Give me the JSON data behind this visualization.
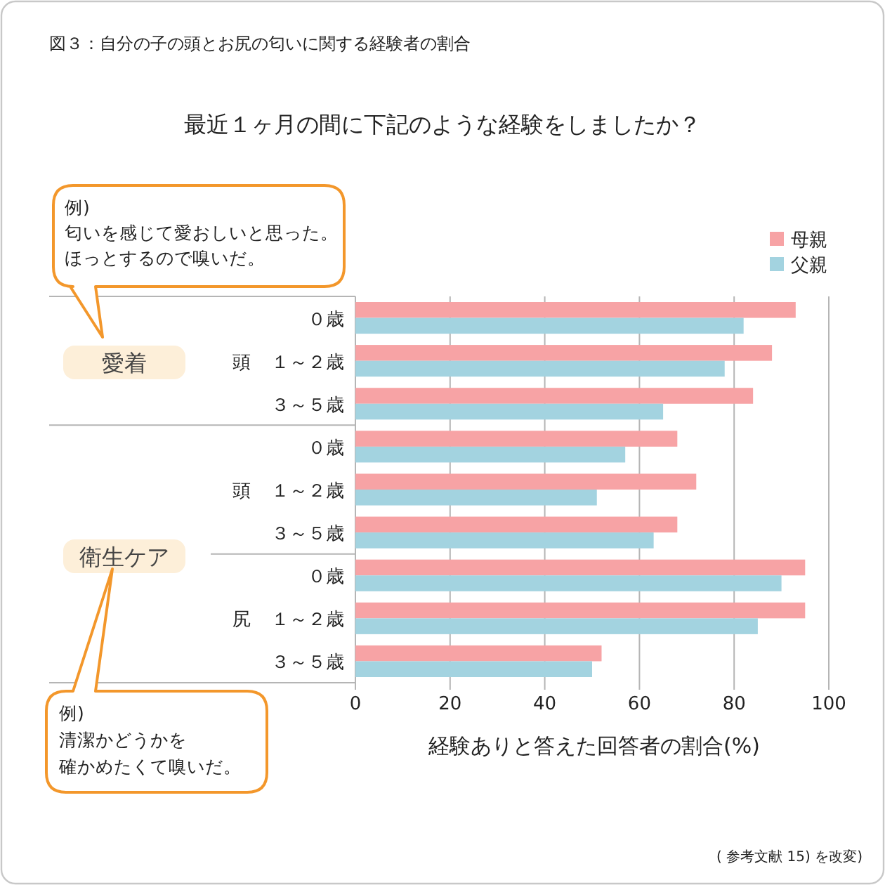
{
  "chart_data": {
    "type": "bar",
    "orientation": "horizontal",
    "title": "図３：自分の子の頭とお尻の匂いに関する経験者の割合",
    "subtitle": "最近１ヶ月の間に下記のような経験をしましたか？",
    "xlabel": "経験ありと答えた回答者の割合(%)",
    "categories": [
      "０歳",
      "１～２歳",
      "３～５歳",
      "０歳",
      "１～２歳",
      "３～５歳",
      "０歳",
      "１～２歳",
      "３～５歳"
    ],
    "series": [
      {
        "name": "母親",
        "color": "#f7a3a5",
        "values": [
          93,
          88,
          84,
          68,
          72,
          68,
          95,
          95,
          52
        ]
      },
      {
        "name": "父親",
        "color": "#a3d3e0",
        "values": [
          82,
          78,
          65,
          57,
          51,
          63,
          90,
          85,
          50
        ]
      }
    ],
    "xlim": [
      0,
      100
    ],
    "xticks": [
      0,
      20,
      40,
      60,
      80,
      100
    ],
    "grid": "x",
    "legend": "top right",
    "annotations": [
      "頭",
      "頭",
      "尻",
      "愛着",
      "衛生ケア",
      "例)",
      "匂いを感じて愛おしいと思った。",
      "ほっとするので嗅いだ。",
      "例)",
      "清潔かどうかを",
      "確かめたくて嗅いだ。",
      "( 参考文献 15) を改変)"
    ]
  }
}
